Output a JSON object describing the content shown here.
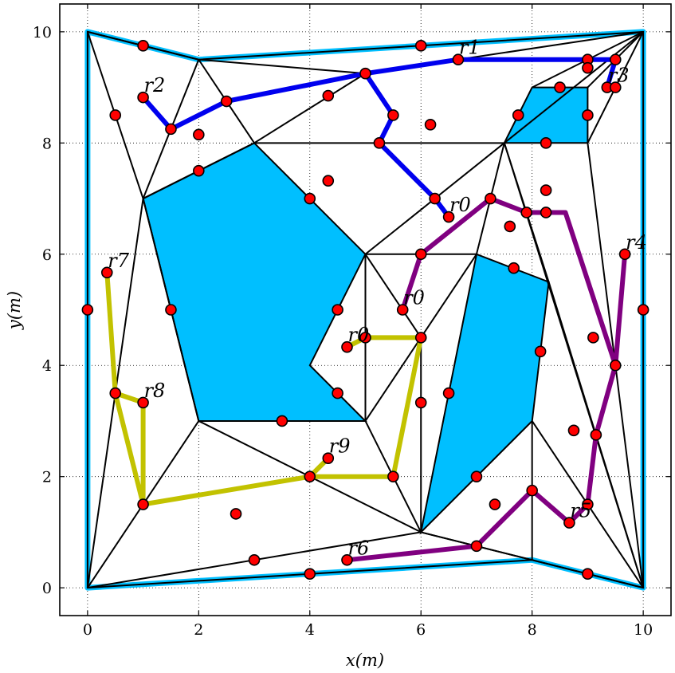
{
  "chart_data": {
    "type": "scatter",
    "title": "",
    "xlabel": "x(m)",
    "ylabel": "y(m)",
    "xlim": [
      -0.5,
      10.5
    ],
    "ylim": [
      -0.5,
      10.5
    ],
    "xticks": [
      0,
      2,
      4,
      6,
      8,
      10
    ],
    "yticks": [
      0,
      2,
      4,
      6,
      8,
      10
    ],
    "grid": true,
    "boundary": [
      [
        0,
        10
      ],
      [
        2,
        9.5
      ],
      [
        10,
        10
      ],
      [
        10,
        0
      ],
      [
        8,
        0.5
      ],
      [
        0,
        0
      ]
    ],
    "obstacles": [
      [
        [
          1,
          7
        ],
        [
          3,
          8
        ],
        [
          5,
          6
        ],
        [
          4,
          4
        ],
        [
          5,
          3
        ],
        [
          2,
          3
        ]
      ],
      [
        [
          7,
          6
        ],
        [
          8.3,
          5.5
        ],
        [
          8,
          3
        ],
        [
          6,
          1
        ]
      ],
      [
        [
          7.5,
          8
        ],
        [
          8,
          9
        ],
        [
          9,
          9
        ],
        [
          9,
          8
        ]
      ]
    ],
    "triangulation_edges": [
      [
        [
          0,
          10
        ],
        [
          1,
          7
        ]
      ],
      [
        [
          0,
          10
        ],
        [
          2,
          9.5
        ]
      ],
      [
        [
          2,
          9.5
        ],
        [
          1,
          7
        ]
      ],
      [
        [
          2,
          9.5
        ],
        [
          3,
          8
        ]
      ],
      [
        [
          2,
          9.5
        ],
        [
          5,
          9.25
        ]
      ],
      [
        [
          1,
          7
        ],
        [
          0,
          0
        ]
      ],
      [
        [
          1,
          7
        ],
        [
          3,
          8
        ]
      ],
      [
        [
          3,
          8
        ],
        [
          5,
          9.25
        ]
      ],
      [
        [
          5,
          9.25
        ],
        [
          10,
          10
        ]
      ],
      [
        [
          3,
          8
        ],
        [
          7.5,
          8
        ]
      ],
      [
        [
          7.5,
          8
        ],
        [
          10,
          10
        ]
      ],
      [
        [
          8,
          9
        ],
        [
          10,
          10
        ]
      ],
      [
        [
          9,
          9
        ],
        [
          10,
          10
        ]
      ],
      [
        [
          9,
          8
        ],
        [
          10,
          10
        ]
      ],
      [
        [
          5,
          6
        ],
        [
          7.5,
          8
        ]
      ],
      [
        [
          5,
          6
        ],
        [
          7,
          6
        ]
      ],
      [
        [
          5,
          6
        ],
        [
          5,
          3
        ]
      ],
      [
        [
          7.5,
          8
        ],
        [
          7,
          6
        ]
      ],
      [
        [
          7.5,
          8
        ],
        [
          8.3,
          5.5
        ]
      ],
      [
        [
          7.5,
          8
        ],
        [
          10,
          0
        ]
      ],
      [
        [
          9,
          8
        ],
        [
          10,
          0
        ]
      ],
      [
        [
          8.3,
          5.5
        ],
        [
          10,
          0
        ]
      ],
      [
        [
          8,
          3
        ],
        [
          10,
          0
        ]
      ],
      [
        [
          6,
          1
        ],
        [
          10,
          0
        ]
      ],
      [
        [
          6,
          1
        ],
        [
          8,
          0.5
        ]
      ],
      [
        [
          6,
          1
        ],
        [
          0,
          0
        ]
      ],
      [
        [
          6,
          1
        ],
        [
          5,
          3
        ]
      ],
      [
        [
          6,
          1
        ],
        [
          2,
          3
        ]
      ],
      [
        [
          7,
          6
        ],
        [
          6,
          4.5
        ]
      ],
      [
        [
          6,
          4.5
        ],
        [
          5,
          3
        ]
      ],
      [
        [
          6,
          4.5
        ],
        [
          5,
          6
        ]
      ],
      [
        [
          6,
          4.5
        ],
        [
          6,
          1
        ]
      ],
      [
        [
          2,
          3
        ],
        [
          0,
          0
        ]
      ],
      [
        [
          5,
          3
        ],
        [
          2,
          3
        ]
      ],
      [
        [
          8,
          3
        ],
        [
          8,
          0.5
        ]
      ],
      [
        [
          2,
          3
        ],
        [
          1,
          7
        ]
      ]
    ],
    "nodes": [
      [
        0,
        5
      ],
      [
        1,
        9.75
      ],
      [
        0.5,
        8.5
      ],
      [
        1,
        8.82
      ],
      [
        1.5,
        8.25
      ],
      [
        2,
        8.15
      ],
      [
        2,
        7.5
      ],
      [
        2.5,
        8.75
      ],
      [
        4,
        7
      ],
      [
        4.33,
        8.85
      ],
      [
        4.33,
        7.32
      ],
      [
        5,
        9.25
      ],
      [
        5.5,
        8.5
      ],
      [
        5.25,
        8
      ],
      [
        6,
        9.75
      ],
      [
        6.17,
        8.33
      ],
      [
        6.67,
        9.5
      ],
      [
        6.25,
        7
      ],
      [
        6.5,
        6.67
      ],
      [
        7.25,
        7
      ],
      [
        7.9,
        6.75
      ],
      [
        7.6,
        6.5
      ],
      [
        8.25,
        6.75
      ],
      [
        8.25,
        7.15
      ],
      [
        7.75,
        8.5
      ],
      [
        8.25,
        8
      ],
      [
        8.5,
        9
      ],
      [
        9,
        9.5
      ],
      [
        9,
        9.35
      ],
      [
        9,
        8.5
      ],
      [
        9.35,
        9
      ],
      [
        9.5,
        9
      ],
      [
        9.5,
        9.5
      ],
      [
        0.35,
        5.67
      ],
      [
        1.5,
        5
      ],
      [
        4.5,
        5
      ],
      [
        5.67,
        5
      ],
      [
        4.67,
        4.33
      ],
      [
        5,
        4.5
      ],
      [
        6,
        4.5
      ],
      [
        6,
        6
      ],
      [
        7.67,
        5.75
      ],
      [
        9.67,
        6
      ],
      [
        10,
        5
      ],
      [
        9.1,
        4.5
      ],
      [
        8.15,
        4.25
      ],
      [
        9.5,
        4
      ],
      [
        0.5,
        3.5
      ],
      [
        1,
        3.33
      ],
      [
        1,
        1.5
      ],
      [
        4.5,
        3.5
      ],
      [
        3.5,
        3
      ],
      [
        6,
        3.33
      ],
      [
        6.5,
        3.5
      ],
      [
        4.33,
        2.33
      ],
      [
        4,
        2
      ],
      [
        5.5,
        2
      ],
      [
        7,
        2
      ],
      [
        2.67,
        1.33
      ],
      [
        3,
        0.5
      ],
      [
        4,
        0.25
      ],
      [
        4.67,
        0.5
      ],
      [
        7.33,
        1.5
      ],
      [
        7,
        0.75
      ],
      [
        8,
        1.75
      ],
      [
        8.67,
        1.17
      ],
      [
        8.75,
        2.83
      ],
      [
        9.15,
        2.75
      ],
      [
        9,
        1.5
      ],
      [
        9,
        0.25
      ]
    ],
    "series": [
      {
        "name": "r0",
        "color": "#0000ee",
        "points": [
          [
            1,
            8.82
          ],
          [
            1.5,
            8.25
          ],
          [
            2.5,
            8.75
          ],
          [
            5,
            9.25
          ],
          [
            6.67,
            9.5
          ],
          [
            9,
            9.5
          ],
          [
            9.5,
            9.5
          ],
          [
            9.35,
            9
          ]
        ]
      },
      {
        "name": "r0",
        "color": "#0000ee",
        "points": [
          [
            5,
            9.25
          ],
          [
            5.5,
            8.5
          ],
          [
            5.25,
            8
          ],
          [
            6.25,
            7
          ],
          [
            6.5,
            6.67
          ]
        ]
      },
      {
        "name": "r4",
        "color": "#800080",
        "points": [
          [
            5.67,
            5
          ],
          [
            6,
            6
          ],
          [
            7.25,
            7
          ],
          [
            7.9,
            6.75
          ],
          [
            8.6,
            6.75
          ],
          [
            9.5,
            4
          ],
          [
            9.67,
            6
          ]
        ]
      },
      {
        "name": "r6",
        "color": "#800080",
        "points": [
          [
            4.67,
            0.5
          ],
          [
            7,
            0.75
          ],
          [
            8,
            1.75
          ],
          [
            8.67,
            1.17
          ],
          [
            9,
            1.5
          ],
          [
            9.15,
            2.75
          ],
          [
            9.5,
            4
          ]
        ]
      },
      {
        "name": "r7",
        "color": "#c2c200",
        "points": [
          [
            0.35,
            5.67
          ],
          [
            0.5,
            3.5
          ],
          [
            1,
            3.33
          ],
          [
            1,
            1.5
          ],
          [
            0.5,
            3.5
          ],
          [
            1,
            1.5
          ],
          [
            4,
            2
          ],
          [
            5.5,
            2
          ],
          [
            6,
            4.5
          ],
          [
            5,
            4.5
          ],
          [
            4.67,
            4.33
          ]
        ]
      },
      {
        "name": "r9",
        "color": "#c2c200",
        "points": [
          [
            4,
            2
          ],
          [
            4.33,
            2.33
          ]
        ]
      }
    ],
    "robot_labels": [
      {
        "text": "r1",
        "x": 6.67,
        "y": 9.5
      },
      {
        "text": "r2",
        "x": 1,
        "y": 8.82
      },
      {
        "text": "r3",
        "x": 9.35,
        "y": 9
      },
      {
        "text": "r0",
        "x": 6.5,
        "y": 6.67
      },
      {
        "text": "r4",
        "x": 9.67,
        "y": 6
      },
      {
        "text": "r7",
        "x": 0.35,
        "y": 5.67
      },
      {
        "text": "r0",
        "x": 5.67,
        "y": 5
      },
      {
        "text": "r0",
        "x": 4.67,
        "y": 4.33
      },
      {
        "text": "r8",
        "x": 1,
        "y": 3.33
      },
      {
        "text": "r9",
        "x": 4.33,
        "y": 2.33
      },
      {
        "text": "r5",
        "x": 8.67,
        "y": 1.17
      },
      {
        "text": "r6",
        "x": 4.67,
        "y": 0.5
      }
    ],
    "colors": {
      "obstacle_fill": "#00bfff",
      "boundary": "#00bfff",
      "node_fill": "#ff0000",
      "edge": "#000000",
      "grid": "#000000"
    }
  }
}
